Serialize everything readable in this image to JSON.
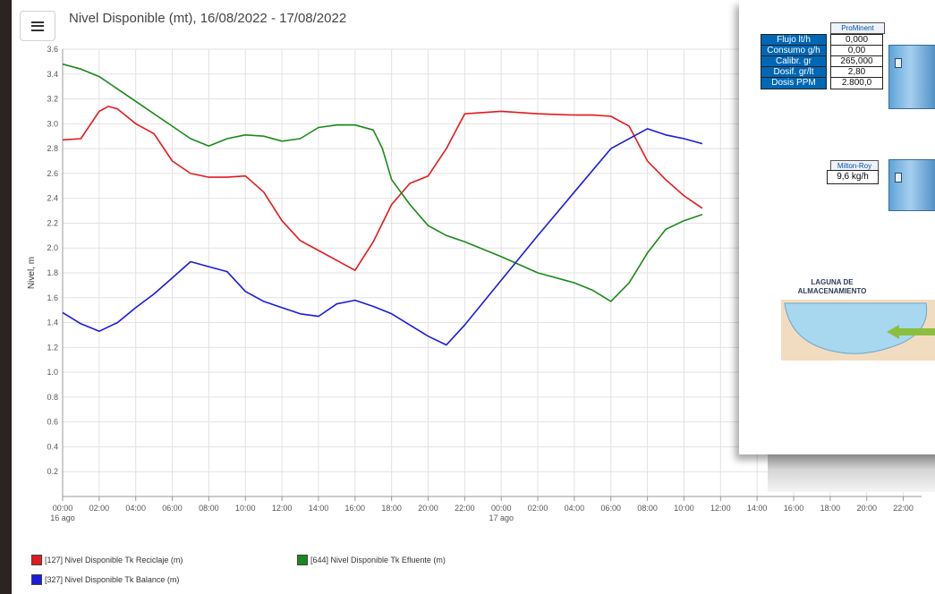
{
  "header": {
    "title": "Nivel Disponible (mt), 16/08/2022 - 17/08/2022",
    "menu_icon": "hamburger-menu-icon"
  },
  "chart_data": {
    "type": "line",
    "title": "Nivel Disponible (mt), 16/08/2022 - 17/08/2022",
    "ylabel": "Nivel, m",
    "xlabel": "",
    "ylim": [
      0,
      3.6
    ],
    "xlim": [
      0,
      47
    ],
    "y_ticks": [
      "0.2",
      "0.4",
      "0.6",
      "0.8",
      "1.0",
      "1.2",
      "1.4",
      "1.6",
      "1.8",
      "2.0",
      "2.2",
      "2.4",
      "2.6",
      "2.8",
      "3.0",
      "3.2",
      "3.4",
      "3.6"
    ],
    "x_ticks": [
      "00:00",
      "02:00",
      "04:00",
      "06:00",
      "08:00",
      "10:00",
      "12:00",
      "14:00",
      "16:00",
      "18:00",
      "20:00",
      "22:00",
      "00:00",
      "02:00",
      "04:00",
      "06:00",
      "08:00",
      "10:00",
      "12:00",
      "14:00",
      "16:00",
      "18:00",
      "20:00",
      "22:00"
    ],
    "x_sublabels": [
      {
        "label": "16 ago",
        "x": 0
      },
      {
        "label": "17 ago",
        "x": 24
      }
    ],
    "grid": true,
    "legend_position": "bottom",
    "series": [
      {
        "name": "[127] Nivel Disponible Tk Reciclaje (m)",
        "color": "#e3191c",
        "x": [
          0,
          1,
          2,
          2.5,
          3,
          4,
          5,
          6,
          7,
          8,
          9,
          10,
          11,
          12,
          13,
          14,
          15,
          16,
          17,
          18,
          19,
          20,
          21,
          22,
          24,
          26,
          28,
          29,
          30,
          31,
          32,
          33,
          34,
          35
        ],
        "y": [
          2.87,
          2.88,
          3.1,
          3.14,
          3.12,
          3.0,
          2.92,
          2.7,
          2.6,
          2.57,
          2.57,
          2.58,
          2.45,
          2.22,
          2.06,
          1.98,
          1.9,
          1.82,
          2.05,
          2.35,
          2.52,
          2.58,
          2.8,
          3.08,
          3.1,
          3.08,
          3.07,
          3.07,
          3.06,
          2.98,
          2.7,
          2.55,
          2.42,
          2.32
        ]
      },
      {
        "name": "[644] Nivel Disponible Tk Efluente (m)",
        "color": "#1a8a1a",
        "x": [
          0,
          1,
          2,
          3,
          4,
          5,
          6,
          7,
          8,
          9,
          10,
          11,
          12,
          13,
          14,
          15,
          16,
          17,
          17.5,
          18,
          19,
          20,
          21,
          22,
          24,
          26,
          28,
          29,
          30,
          31,
          32,
          33,
          34,
          35
        ],
        "y": [
          3.48,
          3.44,
          3.38,
          3.28,
          3.18,
          3.08,
          2.98,
          2.88,
          2.82,
          2.88,
          2.91,
          2.9,
          2.86,
          2.88,
          2.97,
          2.99,
          2.99,
          2.95,
          2.8,
          2.55,
          2.35,
          2.18,
          2.1,
          2.05,
          1.93,
          1.8,
          1.72,
          1.66,
          1.57,
          1.72,
          1.96,
          2.15,
          2.22,
          2.27
        ]
      },
      {
        "name": "[327] Nivel Disponible Tk Balance (m)",
        "color": "#1a1ae0",
        "x": [
          0,
          1,
          2,
          3,
          4,
          5,
          6,
          7,
          8,
          9,
          10,
          11,
          12,
          13,
          14,
          15,
          16,
          17,
          18,
          19,
          20,
          21,
          22,
          24,
          26,
          28,
          30,
          32,
          33,
          34,
          35
        ],
        "y": [
          1.48,
          1.39,
          1.33,
          1.4,
          1.52,
          1.63,
          1.76,
          1.89,
          1.85,
          1.81,
          1.65,
          1.57,
          1.52,
          1.47,
          1.45,
          1.55,
          1.58,
          1.53,
          1.47,
          1.38,
          1.29,
          1.22,
          1.38,
          1.74,
          2.1,
          2.45,
          2.8,
          2.96,
          2.91,
          2.88,
          2.84
        ]
      }
    ]
  },
  "overlay": {
    "prominent": {
      "title": "ProMinent",
      "rows": [
        {
          "label": "Flujo lt/h",
          "value": "0,000"
        },
        {
          "label": "Consumo g/h",
          "value": "0,00"
        },
        {
          "label": "Calibr. gr",
          "value": "265,000"
        },
        {
          "label": "Dosif. gr/lt",
          "value": "2,80"
        },
        {
          "label": "Dosis PPM",
          "value": "2.800,0"
        }
      ]
    },
    "milton_roy": {
      "title": "Milton-Roy",
      "value": "9,6 kg/h"
    },
    "laguna": {
      "title_line1": "LAGUNA DE",
      "title_line2": "ALMACENAMIENTO"
    },
    "colors": {
      "label_bg": "#0067b5",
      "equipment": "#6aaee0",
      "laguna_water": "#a8d8ef",
      "laguna_ground": "#f2dcc0",
      "arrow": "#8cbf3f"
    }
  }
}
